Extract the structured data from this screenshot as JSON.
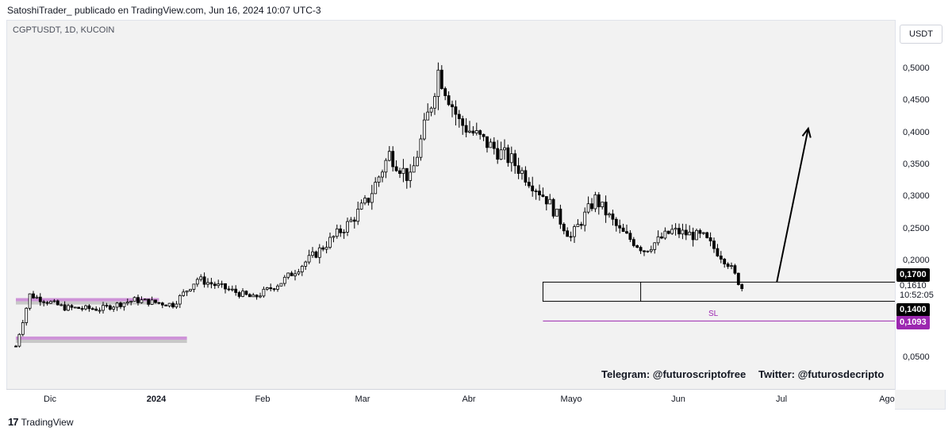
{
  "header": {
    "text": "SatoshiTrader_ publicado en TradingView.com, Jun 16, 2024 10:07 UTC-3"
  },
  "symbol": {
    "text": "CGPTUSDT, 1D, KUCOIN"
  },
  "currency_button": "USDT",
  "y_ticks": [
    "0,5000",
    "0,4500",
    "0,4000",
    "0,3500",
    "0,3000",
    "0,2500",
    "0,2000",
    "0,0500"
  ],
  "x_ticks": [
    "Dic",
    "2024",
    "Feb",
    "Mar",
    "Abr",
    "Mayo",
    "Jun",
    "Jul",
    "Ago"
  ],
  "price_labels": {
    "upper_zone": "0,1700",
    "current_price": "0,1610",
    "countdown": "10:52:05",
    "lower_zone": "0,1400",
    "stop_loss": "0,1093"
  },
  "annotations": {
    "sl": "SL",
    "telegram": "Telegram: @futuroscriptofree",
    "twitter": "Twitter: @futurosdecripto"
  },
  "footer": {
    "brand": "TradingView",
    "logo": "17"
  },
  "colors": {
    "background": "#f2f2f2",
    "candle": "#000000",
    "stop_loss": "#9c27b0",
    "zone_purple": "#ce93d8",
    "zone_grey": "#c8c8c8",
    "label_black": "#000000"
  },
  "chart_data": {
    "type": "candlestick",
    "title": "CGPTUSDT, 1D, KUCOIN",
    "x_range": [
      "2023-11-21",
      "2024-08-10"
    ],
    "y_range": [
      0.0,
      0.53
    ],
    "y_scale": "linear",
    "grid": false,
    "x_ticks": [
      "Dic",
      "2024",
      "Feb",
      "Mar",
      "Abr",
      "Mayo",
      "Jun",
      "Jul",
      "Ago"
    ],
    "y_ticks": [
      0.05,
      0.2,
      0.25,
      0.3,
      0.35,
      0.4,
      0.45,
      0.5
    ],
    "close_trajectory": [
      [
        "2023-11-21",
        0.07
      ],
      [
        "2023-11-25",
        0.15
      ],
      [
        "2023-12-05",
        0.13
      ],
      [
        "2023-12-15",
        0.128
      ],
      [
        "2023-12-25",
        0.142
      ],
      [
        "2024-01-05",
        0.135
      ],
      [
        "2024-01-12",
        0.175
      ],
      [
        "2024-01-20",
        0.16
      ],
      [
        "2024-01-28",
        0.145
      ],
      [
        "2024-02-05",
        0.17
      ],
      [
        "2024-02-15",
        0.215
      ],
      [
        "2024-02-25",
        0.265
      ],
      [
        "2024-03-01",
        0.3
      ],
      [
        "2024-03-07",
        0.37
      ],
      [
        "2024-03-13",
        0.33
      ],
      [
        "2024-03-19",
        0.45
      ],
      [
        "2024-03-21",
        0.5
      ],
      [
        "2024-03-27",
        0.42
      ],
      [
        "2024-04-03",
        0.39
      ],
      [
        "2024-04-11",
        0.36
      ],
      [
        "2024-04-21",
        0.3
      ],
      [
        "2024-04-28",
        0.24
      ],
      [
        "2024-05-05",
        0.3
      ],
      [
        "2024-05-12",
        0.25
      ],
      [
        "2024-05-19",
        0.22
      ],
      [
        "2024-05-27",
        0.25
      ],
      [
        "2024-06-05",
        0.24
      ],
      [
        "2024-06-12",
        0.2
      ],
      [
        "2024-06-16",
        0.161
      ]
    ],
    "horizontal_levels": [
      {
        "label": "0,1700",
        "value": 0.17
      },
      {
        "label": "0,1400",
        "value": 0.14
      },
      {
        "label": "SL",
        "value": 0.1093
      }
    ],
    "zones": [
      {
        "from": 0.14,
        "to": 0.17,
        "start": "2024-04-20",
        "end": "2024-08-10",
        "color": "outline"
      },
      {
        "from": 0.135,
        "to": 0.145,
        "start": "2023-11-21",
        "end": "2024-01-01",
        "color": "purple"
      },
      {
        "from": 0.075,
        "to": 0.085,
        "start": "2023-11-21",
        "end": "2024-01-09",
        "color": "purple"
      }
    ],
    "projection_arrow": {
      "from": [
        "2024-06-26",
        0.17
      ],
      "to": [
        "2024-07-05",
        0.41
      ]
    }
  }
}
